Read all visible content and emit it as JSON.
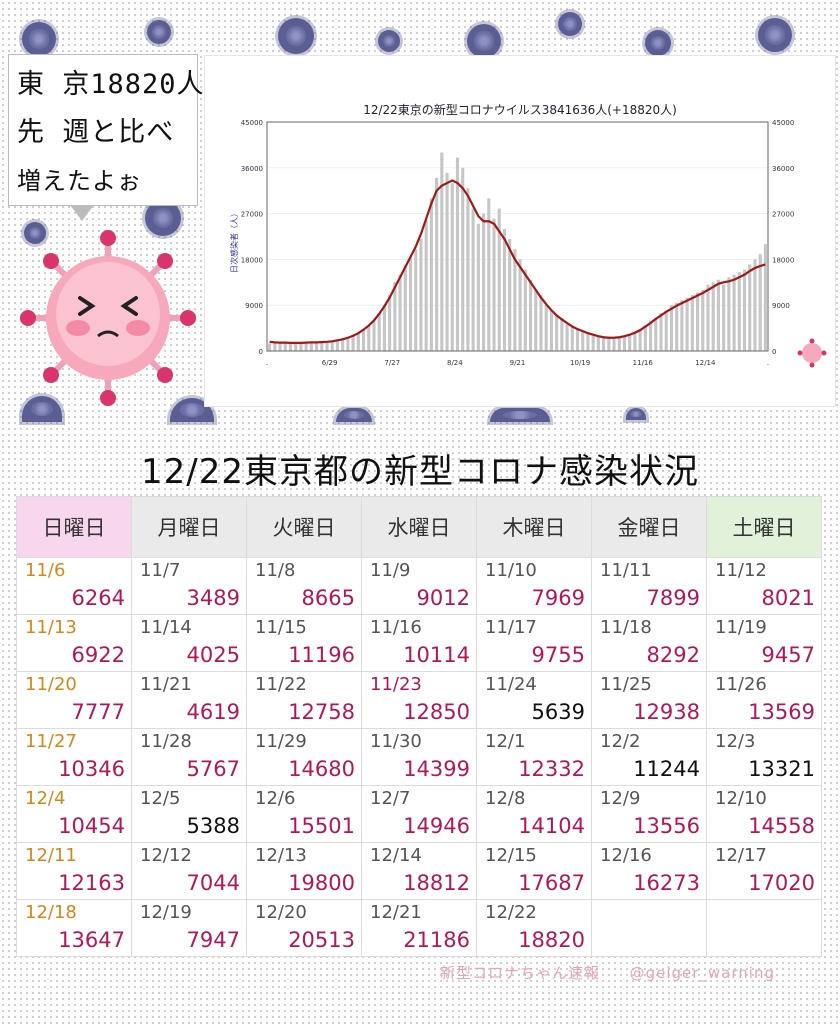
{
  "speech": {
    "lines": [
      "東 京18820人",
      "先 週と比べ",
      "増えたよぉ"
    ]
  },
  "headline": "12/22東京都の新型コロナ感染状況",
  "footer": {
    "brand": "新型コロナちゃん速報",
    "handle": "@geiger_warning"
  },
  "chart_data": {
    "type": "bar",
    "title": "12/22東京の新型コロナウイルス3841636人(+18820人)",
    "ylabel": "日次感染者（人）",
    "ylim": [
      0,
      45000
    ],
    "yticks": [
      0,
      9000,
      18000,
      27000,
      36000,
      45000
    ],
    "xtick_labels": [
      ".",
      "6/29",
      "7/27",
      "8/24",
      "9/21",
      "10/19",
      "11/16",
      "12/14",
      "."
    ],
    "series": [
      {
        "kind": "bar",
        "color": "#c6c6c6",
        "values": [
          1500,
          1800,
          1700,
          1600,
          1600,
          1500,
          1600,
          1700,
          1800,
          1600,
          1700,
          1900,
          2000,
          2200,
          2500,
          2800,
          3200,
          3600,
          4200,
          5000,
          6200,
          7500,
          9000,
          11000,
          13500,
          15000,
          17000,
          18500,
          20000,
          22000,
          26000,
          30000,
          34000,
          39000,
          35000,
          33000,
          38000,
          36000,
          32000,
          28000,
          25000,
          27000,
          30000,
          26000,
          28000,
          24000,
          22000,
          20000,
          18000,
          16000,
          14000,
          12000,
          11000,
          9000,
          8000,
          7000,
          6500,
          5500,
          5000,
          4500,
          4000,
          3500,
          3200,
          2800,
          2600,
          2500,
          2400,
          2600,
          2800,
          3000,
          3500,
          4000,
          5000,
          6000,
          6500,
          7500,
          8000,
          9000,
          9500,
          10000,
          10500,
          11000,
          11500,
          12000,
          13000,
          13500,
          14000,
          13000,
          14500,
          15000,
          15500,
          16000,
          17000,
          18000,
          19000,
          21000
        ]
      },
      {
        "kind": "line",
        "color": "#a01818",
        "values": [
          1800,
          1700,
          1650,
          1650,
          1600,
          1600,
          1600,
          1650,
          1700,
          1700,
          1750,
          1800,
          1900,
          2100,
          2300,
          2600,
          3000,
          3500,
          4200,
          5000,
          6000,
          7300,
          8800,
          10500,
          12500,
          14500,
          16500,
          18500,
          20500,
          23000,
          26000,
          29000,
          31500,
          32500,
          33000,
          33500,
          33000,
          32000,
          30500,
          28500,
          26500,
          25500,
          25500,
          25000,
          23500,
          22000,
          20000,
          18000,
          16500,
          15000,
          13500,
          12000,
          10500,
          9200,
          8000,
          7000,
          6200,
          5500,
          4800,
          4300,
          3900,
          3500,
          3200,
          2900,
          2700,
          2600,
          2600,
          2700,
          2900,
          3200,
          3600,
          4100,
          4800,
          5500,
          6300,
          7000,
          7700,
          8300,
          8900,
          9400,
          9900,
          10400,
          10900,
          11400,
          12000,
          12600,
          13200,
          13500,
          13700,
          14000,
          14500,
          15000,
          15700,
          16300,
          16700,
          17000
        ]
      }
    ]
  },
  "calendar": {
    "weekdays": [
      "日曜日",
      "月曜日",
      "火曜日",
      "水曜日",
      "木曜日",
      "金曜日",
      "土曜日"
    ],
    "rows": [
      [
        {
          "d": "11/6",
          "n": "6264"
        },
        {
          "d": "11/7",
          "n": "3489"
        },
        {
          "d": "11/8",
          "n": "8665"
        },
        {
          "d": "11/9",
          "n": "9012"
        },
        {
          "d": "11/10",
          "n": "7969"
        },
        {
          "d": "11/11",
          "n": "7899"
        },
        {
          "d": "11/12",
          "n": "8021"
        }
      ],
      [
        {
          "d": "11/13",
          "n": "6922"
        },
        {
          "d": "11/14",
          "n": "4025"
        },
        {
          "d": "11/15",
          "n": "11196"
        },
        {
          "d": "11/16",
          "n": "10114"
        },
        {
          "d": "11/17",
          "n": "9755"
        },
        {
          "d": "11/18",
          "n": "8292"
        },
        {
          "d": "11/19",
          "n": "9457"
        }
      ],
      [
        {
          "d": "11/20",
          "n": "7777"
        },
        {
          "d": "11/21",
          "n": "4619"
        },
        {
          "d": "11/22",
          "n": "12758"
        },
        {
          "d": "11/23",
          "n": "12850"
        },
        {
          "d": "11/24",
          "n": "5639"
        },
        {
          "d": "11/25",
          "n": "12938"
        },
        {
          "d": "11/26",
          "n": "13569"
        }
      ],
      [
        {
          "d": "11/27",
          "n": "10346"
        },
        {
          "d": "11/28",
          "n": "5767"
        },
        {
          "d": "11/29",
          "n": "14680"
        },
        {
          "d": "11/30",
          "n": "14399"
        },
        {
          "d": "12/1",
          "n": "12332"
        },
        {
          "d": "12/2",
          "n": "11244"
        },
        {
          "d": "12/3",
          "n": "13321"
        }
      ],
      [
        {
          "d": "12/4",
          "n": "10454"
        },
        {
          "d": "12/5",
          "n": "5388"
        },
        {
          "d": "12/6",
          "n": "15501"
        },
        {
          "d": "12/7",
          "n": "14946"
        },
        {
          "d": "12/8",
          "n": "14104"
        },
        {
          "d": "12/9",
          "n": "13556"
        },
        {
          "d": "12/10",
          "n": "14558"
        }
      ],
      [
        {
          "d": "12/11",
          "n": "12163"
        },
        {
          "d": "12/12",
          "n": "7044"
        },
        {
          "d": "12/13",
          "n": "19800"
        },
        {
          "d": "12/14",
          "n": "18812"
        },
        {
          "d": "12/15",
          "n": "17687"
        },
        {
          "d": "12/16",
          "n": "16273"
        },
        {
          "d": "12/17",
          "n": "17020"
        }
      ],
      [
        {
          "d": "12/18",
          "n": "13647"
        },
        {
          "d": "12/19",
          "n": "7947"
        },
        {
          "d": "12/20",
          "n": "20513"
        },
        {
          "d": "12/21",
          "n": "21186"
        },
        {
          "d": "12/22",
          "n": "18820"
        },
        {
          "d": "",
          "n": ""
        },
        {
          "d": "",
          "n": ""
        }
      ]
    ],
    "holiday_dates": [
      "11/23"
    ],
    "decrease_dates": [
      "11/24",
      "12/2",
      "12/3",
      "12/5"
    ]
  }
}
